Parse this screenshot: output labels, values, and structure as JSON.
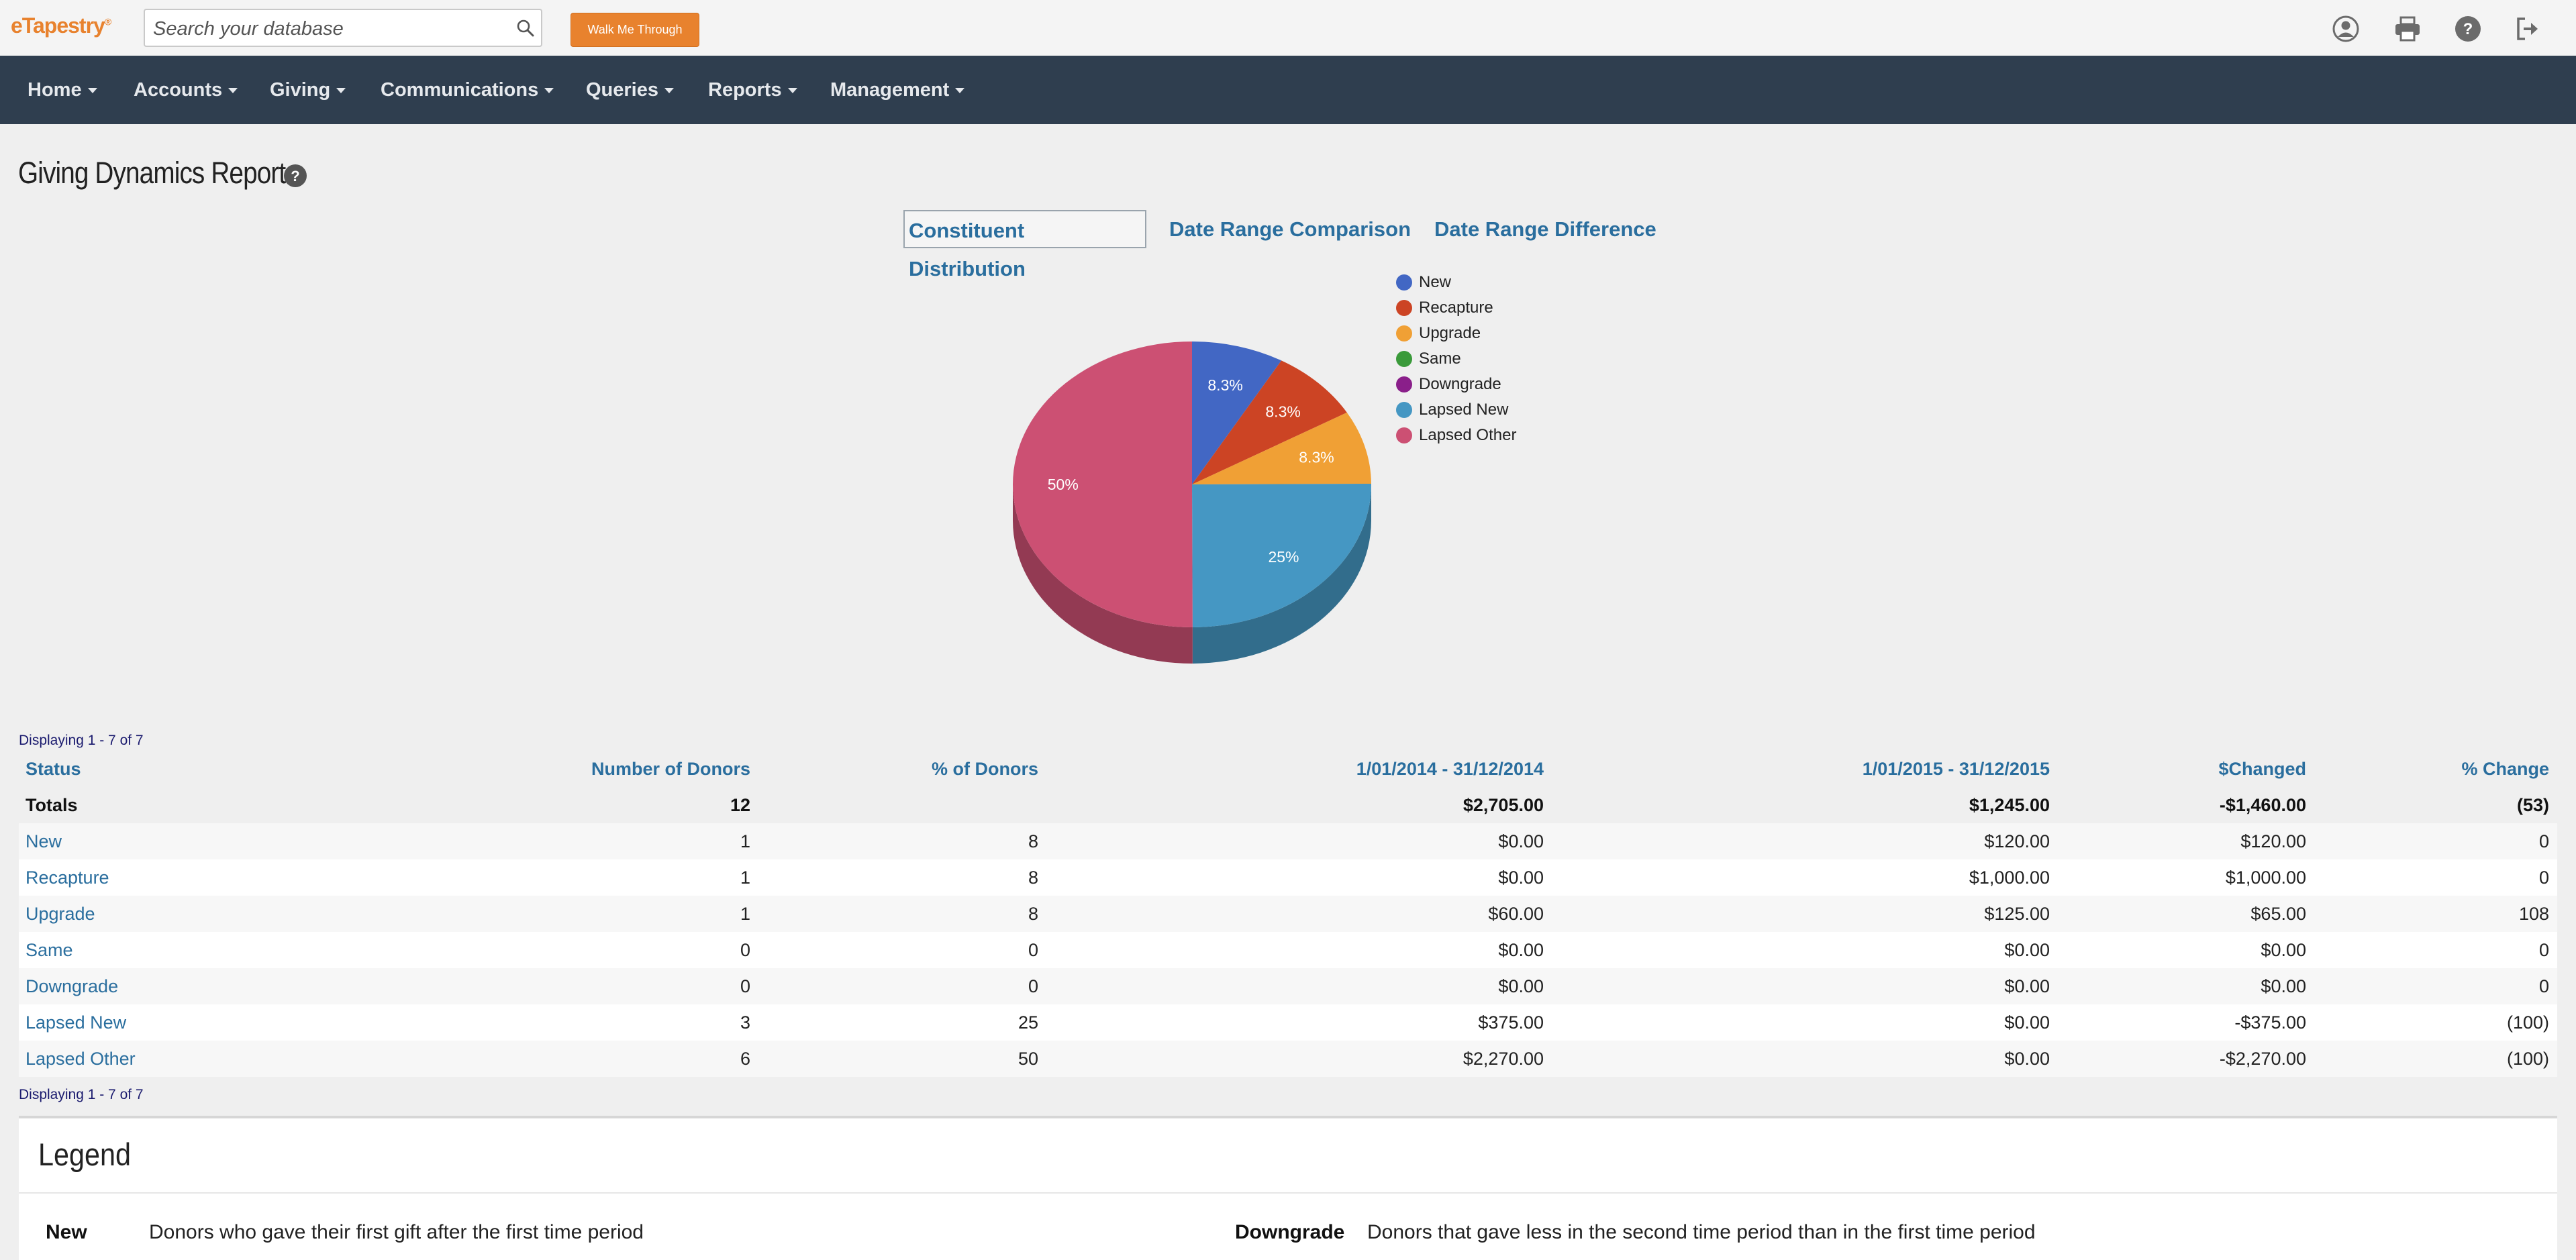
{
  "app": {
    "logo_text": "eTapestry",
    "logo_mark": "®"
  },
  "search": {
    "placeholder": "Search your database"
  },
  "walk_me_label": "Walk Me Through",
  "top_icons": [
    "account-icon",
    "print-icon",
    "help-icon",
    "logout-icon"
  ],
  "nav": [
    "Home",
    "Accounts",
    "Giving",
    "Communications",
    "Queries",
    "Reports",
    "Management"
  ],
  "page": {
    "title": "Giving Dynamics Report"
  },
  "tabs": [
    "Constituent Distribution",
    "Date Range Comparison",
    "Date Range Difference"
  ],
  "chart_data": {
    "type": "pie",
    "categories": [
      "New",
      "Recapture",
      "Upgrade",
      "Same",
      "Downgrade",
      "Lapsed New",
      "Lapsed Other"
    ],
    "values": [
      8.3,
      8.3,
      8.3,
      0,
      0,
      25,
      50
    ],
    "labels": [
      "8.3%",
      "8.3%",
      "8.3%",
      "",
      "",
      "25%",
      "50%"
    ],
    "colors": [
      "#4267c4",
      "#cc4424",
      "#f0a035",
      "#3a9a3a",
      "#8a1f8a",
      "#4597c3",
      "#cc5073"
    ],
    "legend_position": "right"
  },
  "table": {
    "displaying_top": "Displaying 1 - 7 of 7",
    "displaying_bottom": "Displaying 1 - 7 of 7",
    "headers": [
      "Status",
      "Number of Donors",
      "% of Donors",
      "1/01/2014 - 31/12/2014",
      "1/01/2015 - 31/12/2015",
      "$Changed",
      "% Change"
    ],
    "totals": [
      "Totals",
      "12",
      "",
      "$2,705.00",
      "$1,245.00",
      "-$1,460.00",
      "(53)"
    ],
    "rows": [
      [
        "New",
        "1",
        "8",
        "$0.00",
        "$120.00",
        "$120.00",
        "0"
      ],
      [
        "Recapture",
        "1",
        "8",
        "$0.00",
        "$1,000.00",
        "$1,000.00",
        "0"
      ],
      [
        "Upgrade",
        "1",
        "8",
        "$60.00",
        "$125.00",
        "$65.00",
        "108"
      ],
      [
        "Same",
        "0",
        "0",
        "$0.00",
        "$0.00",
        "$0.00",
        "0"
      ],
      [
        "Downgrade",
        "0",
        "0",
        "$0.00",
        "$0.00",
        "$0.00",
        "0"
      ],
      [
        "Lapsed New",
        "3",
        "25",
        "$375.00",
        "$0.00",
        "-$375.00",
        "(100)"
      ],
      [
        "Lapsed Other",
        "6",
        "50",
        "$2,270.00",
        "$0.00",
        "-$2,270.00",
        "(100)"
      ]
    ]
  },
  "legend_panel": {
    "title": "Legend",
    "items": [
      {
        "term": "New",
        "definition": "Donors who gave their first gift after the first time period"
      },
      {
        "term": "Downgrade",
        "definition": "Donors that gave less in the second time period than in the first time period"
      }
    ]
  }
}
